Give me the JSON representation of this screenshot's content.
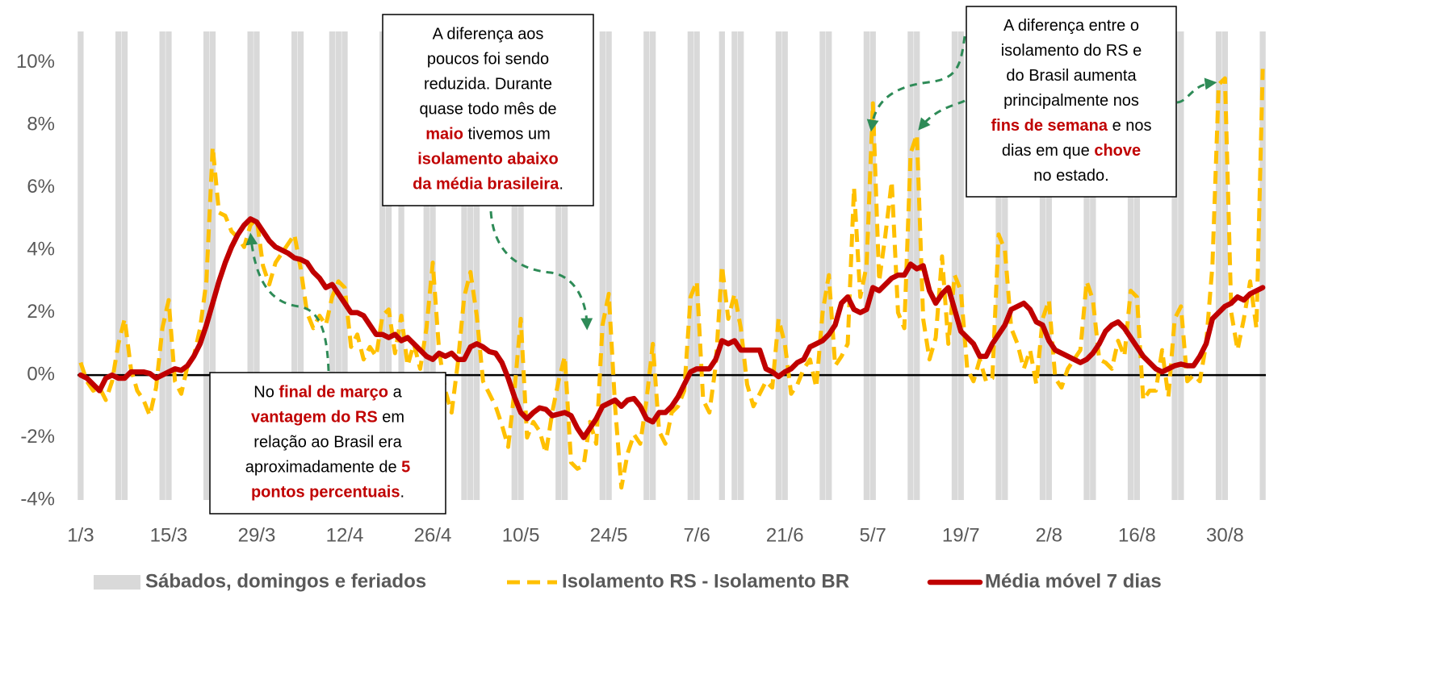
{
  "chart_data": {
    "type": "line",
    "categories": [
      "1/3",
      null,
      null,
      null,
      null,
      null,
      null,
      null,
      null,
      null,
      null,
      null,
      null,
      null,
      "15/3",
      null,
      null,
      null,
      null,
      null,
      null,
      null,
      null,
      null,
      null,
      null,
      null,
      null,
      "29/3",
      null,
      null,
      null,
      null,
      null,
      null,
      null,
      null,
      null,
      null,
      null,
      null,
      null,
      "12/4",
      null,
      null,
      null,
      null,
      null,
      null,
      null,
      null,
      null,
      null,
      null,
      null,
      null,
      "26/4",
      null,
      null,
      null,
      null,
      null,
      null,
      null,
      null,
      null,
      null,
      null,
      null,
      null,
      "10/5",
      null,
      null,
      null,
      null,
      null,
      null,
      null,
      null,
      null,
      null,
      null,
      null,
      null,
      "24/5",
      null,
      null,
      null,
      null,
      null,
      null,
      null,
      null,
      null,
      null,
      null,
      null,
      null,
      "7/6",
      null,
      null,
      null,
      null,
      null,
      null,
      null,
      null,
      null,
      null,
      null,
      null,
      null,
      "21/6",
      null,
      null,
      null,
      null,
      null,
      null,
      null,
      null,
      null,
      null,
      null,
      null,
      null,
      "5/7",
      null,
      null,
      null,
      null,
      null,
      null,
      null,
      null,
      null,
      null,
      null,
      null,
      null,
      "19/7",
      null,
      null,
      null,
      null,
      null,
      null,
      null,
      null,
      null,
      null,
      null,
      null,
      null,
      "2/8",
      null,
      null,
      null,
      null,
      null,
      null,
      null,
      null,
      null,
      null,
      null,
      null,
      null,
      "16/8",
      null,
      null,
      null,
      null,
      null,
      null,
      null,
      null,
      null,
      null,
      null,
      null,
      null,
      "30/8",
      null,
      null,
      null,
      null,
      null,
      null
    ],
    "series": [
      {
        "name": "Sábados, domingos e feriados",
        "color": "#d9d9d9",
        "shade": true,
        "values": [
          true,
          false,
          false,
          false,
          false,
          false,
          true,
          true,
          false,
          false,
          false,
          false,
          false,
          true,
          true,
          false,
          false,
          false,
          false,
          false,
          true,
          true,
          false,
          false,
          false,
          false,
          false,
          true,
          true,
          false,
          false,
          false,
          false,
          false,
          true,
          true,
          false,
          false,
          false,
          false,
          true,
          true,
          true,
          false,
          false,
          false,
          false,
          false,
          true,
          true,
          false,
          true,
          false,
          false,
          false,
          true,
          true,
          false,
          false,
          false,
          false,
          true,
          true,
          true,
          false,
          false,
          false,
          false,
          false,
          true,
          true,
          false,
          false,
          false,
          false,
          false,
          true,
          true,
          false,
          false,
          false,
          false,
          false,
          true,
          true,
          false,
          false,
          false,
          false,
          false,
          true,
          true,
          false,
          false,
          false,
          false,
          false,
          true,
          true,
          false,
          false,
          false,
          true,
          false,
          true,
          true,
          false,
          false,
          false,
          false,
          false,
          true,
          true,
          false,
          false,
          false,
          false,
          false,
          true,
          true,
          false,
          false,
          false,
          false,
          false,
          true,
          true,
          false,
          false,
          false,
          false,
          false,
          true,
          true,
          false,
          false,
          false,
          false,
          false,
          true,
          true,
          false,
          false,
          false,
          false,
          false,
          true,
          true,
          false,
          false,
          false,
          false,
          false,
          true,
          true,
          false,
          false,
          false,
          false,
          false,
          true,
          true,
          false,
          false,
          false,
          false,
          false,
          true,
          true,
          false,
          false,
          false,
          false,
          false,
          true,
          true,
          false,
          false,
          false,
          false,
          false,
          true,
          true,
          false,
          false,
          false,
          false,
          false,
          true
        ]
      },
      {
        "name": "Isolamento RS - Isolamento BR",
        "color": "#ffc000",
        "dashed": true,
        "values": [
          0.4,
          -0.2,
          -0.5,
          -0.4,
          -0.8,
          -0.2,
          1.0,
          1.8,
          0.2,
          -0.5,
          -0.8,
          -1.3,
          -0.4,
          1.5,
          2.4,
          -0.2,
          -0.6,
          0.3,
          0.6,
          1.5,
          3.0,
          7.3,
          5.2,
          5.1,
          4.6,
          4.4,
          4.1,
          4.8,
          5.0,
          3.5,
          2.9,
          3.6,
          3.9,
          4.2,
          4.5,
          3.4,
          2.0,
          1.5,
          1.9,
          1.6,
          2.5,
          3.0,
          2.8,
          0.9,
          1.3,
          0.5,
          0.9,
          0.6,
          1.9,
          2.1,
          0.7,
          1.9,
          0.3,
          1.0,
          0.2,
          1.5,
          3.6,
          0.8,
          -0.5,
          -1.2,
          0.4,
          2.5,
          3.3,
          1.9,
          -0.2,
          -0.6,
          -1.0,
          -1.6,
          -2.3,
          -0.5,
          1.8,
          -2.0,
          -1.5,
          -1.8,
          -2.5,
          -1.2,
          -0.2,
          0.6,
          -2.8,
          -3.0,
          -2.9,
          -1.5,
          -2.2,
          1.6,
          2.6,
          -1.0,
          -3.6,
          -2.5,
          -1.9,
          -2.2,
          -0.8,
          1.0,
          -1.8,
          -2.2,
          -1.2,
          -1.0,
          -0.5,
          2.5,
          3.0,
          -0.8,
          -1.2,
          0.3,
          3.5,
          1.8,
          2.6,
          1.5,
          -0.3,
          -1.0,
          -0.6,
          -0.2,
          -0.4,
          1.8,
          1.0,
          -0.6,
          -0.3,
          0.2,
          0.5,
          -0.4,
          2.0,
          3.2,
          0.3,
          0.6,
          1.0,
          6.0,
          2.5,
          3.5,
          8.7,
          3.0,
          4.5,
          6.2,
          2.0,
          1.5,
          7.1,
          7.7,
          1.8,
          0.5,
          1.2,
          3.8,
          1.0,
          3.2,
          2.7,
          0.2,
          -0.2,
          0.5,
          -0.2,
          -0.1,
          4.5,
          4.0,
          1.5,
          1.0,
          0.2,
          0.8,
          -0.3,
          1.8,
          2.4,
          -0.1,
          -0.4,
          0.2,
          0.5,
          0.8,
          3.0,
          2.4,
          0.5,
          0.4,
          0.2,
          1.1,
          0.6,
          2.7,
          2.5,
          -0.8,
          -0.5,
          -0.5,
          0.8,
          -0.7,
          1.8,
          2.2,
          -0.2,
          0.0,
          -0.2,
          1.0,
          3.5,
          9.3,
          9.5,
          2.0,
          0.8,
          1.8,
          3.0,
          1.5,
          9.8
        ]
      },
      {
        "name": "Média móvel 7 dias",
        "color": "#c00000",
        "values": [
          0,
          -0.1,
          -0.3,
          -0.5,
          -0.1,
          0,
          -0.1,
          -0.1,
          0.1,
          0.1,
          0.1,
          0.05,
          -0.1,
          0,
          0.1,
          0.2,
          0.15,
          0.3,
          0.6,
          1.0,
          1.6,
          2.3,
          3.0,
          3.6,
          4.1,
          4.5,
          4.8,
          5.0,
          4.9,
          4.6,
          4.3,
          4.1,
          4.0,
          3.9,
          3.75,
          3.7,
          3.6,
          3.3,
          3.1,
          2.8,
          2.9,
          2.6,
          2.3,
          2.0,
          2.0,
          1.9,
          1.6,
          1.3,
          1.3,
          1.2,
          1.3,
          1.1,
          1.2,
          1.0,
          0.8,
          0.6,
          0.5,
          0.7,
          0.6,
          0.7,
          0.5,
          0.5,
          0.9,
          1.0,
          0.9,
          0.75,
          0.7,
          0.4,
          -0.1,
          -0.7,
          -1.2,
          -1.4,
          -1.2,
          -1.05,
          -1.1,
          -1.3,
          -1.25,
          -1.2,
          -1.3,
          -1.7,
          -2.0,
          -1.7,
          -1.4,
          -1.0,
          -0.9,
          -0.8,
          -1.0,
          -0.8,
          -0.75,
          -1.0,
          -1.4,
          -1.5,
          -1.2,
          -1.2,
          -1.0,
          -0.7,
          -0.3,
          0.1,
          0.2,
          0.2,
          0.2,
          0.5,
          1.1,
          1.0,
          1.1,
          0.8,
          0.8,
          0.8,
          0.8,
          0.2,
          0.1,
          -0.05,
          0.1,
          0.2,
          0.4,
          0.5,
          0.9,
          1.0,
          1.1,
          1.3,
          1.6,
          2.3,
          2.5,
          2.1,
          2.0,
          2.1,
          2.8,
          2.7,
          2.9,
          3.1,
          3.2,
          3.2,
          3.55,
          3.4,
          3.5,
          2.7,
          2.3,
          2.6,
          2.8,
          2.1,
          1.4,
          1.2,
          1.0,
          0.6,
          0.6,
          1.0,
          1.3,
          1.6,
          2.1,
          2.2,
          2.3,
          2.1,
          1.7,
          1.6,
          1.1,
          0.8,
          0.7,
          0.6,
          0.5,
          0.4,
          0.5,
          0.7,
          1.0,
          1.4,
          1.6,
          1.7,
          1.5,
          1.2,
          0.9,
          0.6,
          0.4,
          0.2,
          0.1,
          0.2,
          0.3,
          0.35,
          0.3,
          0.3,
          0.6,
          1.0,
          1.8,
          2.0,
          2.2,
          2.3,
          2.5,
          2.4,
          2.6,
          2.7,
          2.8
        ]
      }
    ],
    "ylim": [
      -4,
      11
    ],
    "yticks": [
      {
        "value": -4,
        "label": "-4%"
      },
      {
        "value": -2,
        "label": "-2%"
      },
      {
        "value": 0,
        "label": "0%"
      },
      {
        "value": 2,
        "label": "2%"
      },
      {
        "value": 4,
        "label": "4%"
      },
      {
        "value": 6,
        "label": "6%"
      },
      {
        "value": 8,
        "label": "8%"
      },
      {
        "value": 10,
        "label": "10%"
      }
    ],
    "grid": false,
    "legend": "bottom",
    "annotations": [
      {
        "lines": [
          [
            {
              "text": "A diferença aos"
            }
          ],
          [
            {
              "text": "poucos foi sendo"
            }
          ],
          [
            {
              "text": "reduzida. Durante"
            }
          ],
          [
            {
              "text": "quase todo mês de"
            }
          ],
          [
            {
              "text": "maio",
              "highlight": true
            },
            {
              "text": " tivemos um"
            }
          ],
          [
            {
              "text": "isolamento abaixo",
              "highlight": true
            }
          ],
          [
            {
              "text": "da média brasileira",
              "highlight": true
            },
            {
              "text": "."
            }
          ]
        ]
      },
      {
        "lines": [
          [
            {
              "text": "A diferença entre o"
            }
          ],
          [
            {
              "text": "isolamento do RS e"
            }
          ],
          [
            {
              "text": "do Brasil aumenta"
            }
          ],
          [
            {
              "text": "principalmente nos"
            }
          ],
          [
            {
              "text": "fins de semana",
              "highlight": true
            },
            {
              "text": " e nos"
            }
          ],
          [
            {
              "text": "dias em que "
            },
            {
              "text": "chove",
              "highlight": true
            }
          ],
          [
            {
              "text": "no estado."
            }
          ]
        ]
      },
      {
        "lines": [
          [
            {
              "text": "No "
            },
            {
              "text": "final de março",
              "highlight": true
            },
            {
              "text": " a"
            }
          ],
          [
            {
              "text": "vantagem do RS",
              "highlight": true
            },
            {
              "text": " em"
            }
          ],
          [
            {
              "text": "relação ao Brasil era"
            }
          ],
          [
            {
              "text": "aproximadamente de "
            },
            {
              "text": "5",
              "highlight": true
            }
          ],
          [
            {
              "text": "pontos percentuais",
              "highlight": true
            },
            {
              "text": "."
            }
          ]
        ]
      }
    ]
  }
}
